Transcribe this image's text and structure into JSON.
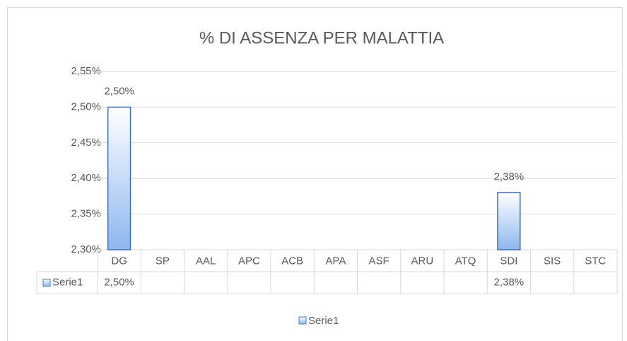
{
  "chart_data": {
    "type": "bar",
    "title": "% DI ASSENZA PER MALATTIA",
    "categories": [
      "DG",
      "SP",
      "AAL",
      "APC",
      "ACB",
      "APA",
      "ASF",
      "ARU",
      "ATQ",
      "SDI",
      "SIS",
      "STC"
    ],
    "series": [
      {
        "name": "Serie1",
        "color": "#8db7f0",
        "values": [
          2.5,
          null,
          null,
          null,
          null,
          null,
          null,
          null,
          null,
          2.38,
          null,
          null
        ],
        "value_labels": [
          "2,50%",
          null,
          null,
          null,
          null,
          null,
          null,
          null,
          null,
          "2,38%",
          null,
          null
        ]
      }
    ],
    "ylim": [
      2.3,
      2.55
    ],
    "yticks": [
      {
        "value": 2.3,
        "label": "2,30%"
      },
      {
        "value": 2.35,
        "label": "2,35%"
      },
      {
        "value": 2.4,
        "label": "2,40%"
      },
      {
        "value": 2.45,
        "label": "2,45%"
      },
      {
        "value": 2.5,
        "label": "2,50%"
      },
      {
        "value": 2.55,
        "label": "2,55%"
      }
    ],
    "grid": true,
    "data_table": true,
    "legend": "bottom"
  }
}
